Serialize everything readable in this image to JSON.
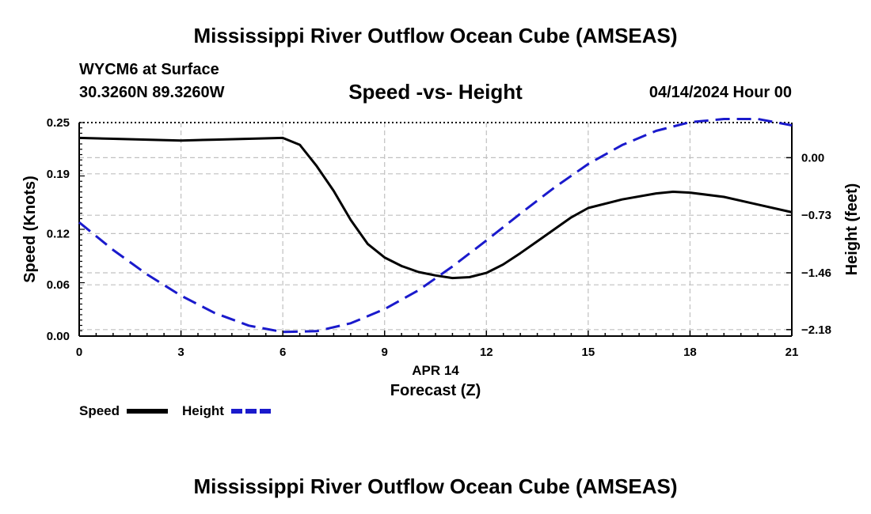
{
  "header": {
    "title": "Mississippi River Outflow Ocean Cube (AMSEAS)",
    "station": "WYCM6 at Surface",
    "coordinates": "30.3260N  89.3260W",
    "chart_title": "Speed -vs- Height",
    "datetime": "04/14/2024 Hour 00"
  },
  "footer": {
    "title": "Mississippi River Outflow Ocean Cube (AMSEAS)"
  },
  "legend": {
    "speed_label": "Speed",
    "height_label": "Height"
  },
  "colors": {
    "speed": "#000000",
    "height": "#1a1acc",
    "grid": "#c0c0c0"
  },
  "chart_data": {
    "type": "line",
    "title": "Speed -vs- Height",
    "xlabel": "Forecast (Z)",
    "xsublabel": "APR 14",
    "ylabel": "Speed (Knots)",
    "y2label": "Height (feet)",
    "xlim": [
      0,
      21
    ],
    "ylim": [
      0,
      0.25
    ],
    "y2lim": [
      -2.262,
      0.445
    ],
    "xticks": [
      0,
      3,
      6,
      9,
      12,
      15,
      18,
      21
    ],
    "yticks": [
      0.0,
      0.06,
      0.12,
      0.19,
      0.25
    ],
    "ytick_labels": [
      "0.00",
      "0.06",
      "0.12",
      "0.19",
      "0.25"
    ],
    "y2ticks": [
      0.0,
      -0.73,
      -1.46,
      -2.18
    ],
    "y2tick_labels": [
      "0.00",
      "-0.73",
      "-1.46",
      "-2.18"
    ],
    "grid": true,
    "series": [
      {
        "name": "Speed",
        "axis": "left",
        "style": "solid",
        "x": [
          0,
          1,
          2,
          3,
          4,
          5,
          6,
          6.5,
          7,
          7.5,
          8,
          8.5,
          9,
          9.5,
          10,
          10.5,
          11,
          11.5,
          12,
          12.5,
          13,
          13.5,
          14,
          14.5,
          15,
          16,
          17,
          17.5,
          18,
          19,
          20,
          21
        ],
        "values": [
          0.232,
          0.231,
          0.23,
          0.229,
          0.23,
          0.231,
          0.232,
          0.224,
          0.199,
          0.17,
          0.136,
          0.108,
          0.092,
          0.082,
          0.075,
          0.071,
          0.068,
          0.069,
          0.074,
          0.084,
          0.097,
          0.111,
          0.125,
          0.139,
          0.15,
          0.16,
          0.167,
          0.169,
          0.168,
          0.163,
          0.154,
          0.145
        ]
      },
      {
        "name": "Height",
        "axis": "right",
        "style": "dashed",
        "x": [
          0,
          1,
          2,
          3,
          4,
          5,
          6,
          7,
          8,
          9,
          10,
          11,
          12,
          13,
          14,
          15,
          16,
          17,
          18,
          19,
          20,
          21
        ],
        "values": [
          -0.82,
          -1.17,
          -1.48,
          -1.75,
          -1.97,
          -2.13,
          -2.21,
          -2.2,
          -2.1,
          -1.92,
          -1.68,
          -1.38,
          -1.05,
          -0.71,
          -0.38,
          -0.08,
          0.16,
          0.34,
          0.45,
          0.49,
          0.49,
          0.41
        ]
      }
    ]
  }
}
